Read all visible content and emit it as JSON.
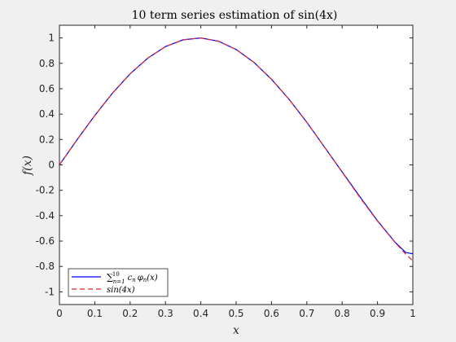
{
  "chart_data": {
    "type": "line",
    "title": "10 term series estimation of sin(4x)",
    "xlabel": "x",
    "ylabel": "f(x)",
    "xlim": [
      0,
      1
    ],
    "ylim": [
      -1.1,
      1.1
    ],
    "grid": false,
    "legend_position": "bottom-left",
    "xticks": [
      "0",
      "0.1",
      "0.2",
      "0.3",
      "0.4",
      "0.5",
      "0.6",
      "0.7",
      "0.8",
      "0.9",
      "1"
    ],
    "yticks": [
      "-1",
      "-0.8",
      "-0.6",
      "-0.4",
      "-0.2",
      "0",
      "0.2",
      "0.4",
      "0.6",
      "0.8",
      "1"
    ],
    "x": [
      0,
      0.05,
      0.1,
      0.15,
      0.2,
      0.25,
      0.3,
      0.35,
      0.4,
      0.45,
      0.5,
      0.55,
      0.6,
      0.65,
      0.7,
      0.75,
      0.8,
      0.85,
      0.9,
      0.95,
      0.98,
      1.0
    ],
    "series": [
      {
        "name": "∑_{n=1}^{10} c_n φ_n(x)",
        "legend_sum": "∑",
        "legend_upper": "10",
        "legend_lower": "n=1",
        "legend_rest": "c",
        "legend_rest_sub": "n",
        "legend_rest2": "φ",
        "legend_rest2_sub": "n",
        "legend_rest3": "(x)",
        "color": "#0000ff",
        "style": "solid",
        "values": [
          0,
          0.199,
          0.389,
          0.565,
          0.717,
          0.841,
          0.932,
          0.985,
          1.0,
          0.974,
          0.909,
          0.808,
          0.675,
          0.516,
          0.336,
          0.14,
          -0.055,
          -0.25,
          -0.44,
          -0.61,
          -0.69,
          -0.7
        ]
      },
      {
        "name": "sin(4x)",
        "color": "#e8212d",
        "style": "dashed",
        "values": [
          0,
          0.199,
          0.389,
          0.565,
          0.717,
          0.841,
          0.932,
          0.985,
          1.0,
          0.974,
          0.909,
          0.808,
          0.675,
          0.516,
          0.335,
          0.141,
          -0.058,
          -0.256,
          -0.443,
          -0.612,
          -0.703,
          -0.757
        ]
      }
    ]
  },
  "colors": {
    "figure_bg": "#f0f0f0",
    "axes_bg": "#ffffff",
    "axis_color": "#262626"
  }
}
